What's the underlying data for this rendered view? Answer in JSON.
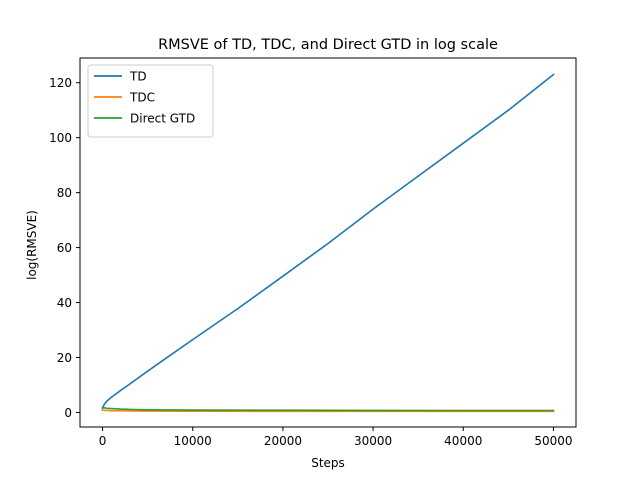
{
  "chart_data": {
    "type": "line",
    "title": "RMSVE of TD, TDC, and Direct GTD in log scale",
    "xlabel": "Steps",
    "ylabel": "log(RMSVE)",
    "xlim": [
      -2500,
      52500
    ],
    "ylim": [
      -5.3,
      129
    ],
    "xticks": [
      0,
      10000,
      20000,
      30000,
      40000,
      50000
    ],
    "xtick_labels": [
      "0",
      "10000",
      "20000",
      "30000",
      "40000",
      "50000"
    ],
    "yticks": [
      0,
      20,
      40,
      60,
      80,
      100,
      120
    ],
    "ytick_labels": [
      "0",
      "20",
      "40",
      "60",
      "80",
      "100",
      "120"
    ],
    "grid": false,
    "legend_position": "top-left",
    "series": [
      {
        "name": "TD",
        "color": "#1f77b4",
        "x": [
          0,
          200,
          500,
          1000,
          2000,
          3000,
          5000,
          7500,
          10000,
          15000,
          20000,
          25000,
          30000,
          35000,
          40000,
          45000,
          50000
        ],
        "y": [
          1.5,
          3.0,
          4.2,
          5.6,
          8.0,
          10.3,
          15.0,
          20.8,
          26.5,
          37.8,
          49.6,
          61.5,
          74.0,
          86.0,
          98.0,
          110.0,
          123.0
        ]
      },
      {
        "name": "TDC",
        "color": "#ff7f0e",
        "x": [
          0,
          500,
          1000,
          2000,
          3000,
          5000,
          10000,
          20000,
          30000,
          40000,
          50000
        ],
        "y": [
          0.8,
          0.7,
          0.65,
          0.6,
          0.55,
          0.5,
          0.45,
          0.42,
          0.4,
          0.4,
          0.4
        ]
      },
      {
        "name": "Direct GTD",
        "color": "#2ca02c",
        "x": [
          0,
          500,
          1000,
          2000,
          3000,
          5000,
          10000,
          20000,
          30000,
          40000,
          50000
        ],
        "y": [
          1.8,
          1.5,
          1.4,
          1.2,
          1.1,
          0.95,
          0.85,
          0.8,
          0.75,
          0.72,
          0.7
        ]
      }
    ]
  }
}
